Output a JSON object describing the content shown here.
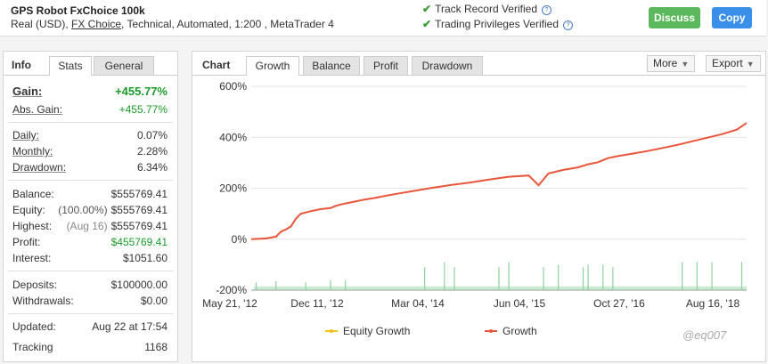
{
  "header": {
    "system_name": "GPS Robot FxChoice 100k",
    "sub_prefix": "Real (USD), ",
    "broker": "FX Choice",
    "sub_suffix": ", Technical, Automated, 1:200 , MetaTrader 4",
    "track_record": "Track Record Verified",
    "trading_privileges": "Trading Privileges Verified",
    "discuss_label": "Discuss",
    "copy_label": "Copy"
  },
  "info": {
    "title": "Info",
    "tabs": [
      "Stats",
      "General"
    ],
    "gain_label": "Gain:",
    "gain_value": "+455.77%",
    "abs_gain_label": "Abs. Gain:",
    "abs_gain_value": "+455.77%",
    "daily_label": "Daily:",
    "daily_value": "0.07%",
    "monthly_label": "Monthly:",
    "monthly_value": "2.28%",
    "drawdown_label": "Drawdown:",
    "drawdown_value": "6.34%",
    "balance_label": "Balance:",
    "balance_value": "$555769.41",
    "equity_label": "Equity:",
    "equity_pct": "(100.00%)",
    "equity_value": "$555769.41",
    "highest_label": "Highest:",
    "highest_date": "(Aug 16)",
    "highest_value": "$555769.41",
    "profit_label": "Profit:",
    "profit_value": "$455769.41",
    "interest_label": "Interest:",
    "interest_value": "$1051.60",
    "deposits_label": "Deposits:",
    "deposits_value": "$100000.00",
    "withdrawals_label": "Withdrawals:",
    "withdrawals_value": "$0.00",
    "updated_label": "Updated:",
    "updated_value": "Aug 22 at 17:54",
    "tracking_label": "Tracking",
    "tracking_value": "1168"
  },
  "chart_panel": {
    "title": "Chart",
    "tabs": [
      "Growth",
      "Balance",
      "Profit",
      "Drawdown"
    ],
    "more_label": "More",
    "export_label": "Export"
  },
  "watermark": "@eq007",
  "colors": {
    "growth": "#e8553a",
    "equity": "#f0c419",
    "bars": "#8fd19e",
    "discuss": "#5cb85c",
    "copy": "#3a8fe8"
  },
  "chart_data": {
    "type": "line",
    "title": "",
    "xlabel": "",
    "ylabel": "",
    "x_ticks": [
      "May 21, '12",
      "Dec 11, '12",
      "Mar 04, '14",
      "Jun 04, '15",
      "Oct 27, '16",
      "Aug 16, '18"
    ],
    "y_ticks": [
      "600%",
      "400%",
      "200%",
      "0%",
      "-200%"
    ],
    "ylim": [
      -200,
      600
    ],
    "legend": [
      "Equity Growth",
      "Growth"
    ],
    "legend_position": "bottom",
    "grid": "horizontal",
    "series": [
      {
        "name": "Growth",
        "x": [
          0,
          3,
          5,
          6,
          7,
          8,
          9,
          10,
          12,
          14,
          16,
          17,
          18,
          19,
          20,
          21,
          22,
          23,
          25,
          27,
          30,
          33,
          36,
          40,
          44,
          48,
          52,
          56,
          58,
          60,
          63,
          66,
          68,
          70,
          72,
          74,
          77,
          80,
          83,
          86,
          89,
          92,
          95,
          98,
          100
        ],
        "y": [
          0,
          3,
          10,
          30,
          38,
          50,
          80,
          100,
          110,
          118,
          122,
          130,
          136,
          140,
          144,
          148,
          152,
          156,
          162,
          170,
          180,
          190,
          200,
          212,
          222,
          234,
          245,
          250,
          212,
          258,
          272,
          282,
          294,
          302,
          318,
          326,
          336,
          346,
          358,
          370,
          384,
          398,
          412,
          430,
          456
        ]
      }
    ],
    "bars": {
      "name": "Deposits",
      "x": [
        1,
        5,
        11,
        16,
        19,
        35,
        39,
        41,
        50,
        52,
        59,
        62,
        67,
        68,
        71,
        73,
        87,
        90,
        93,
        99
      ],
      "y": [
        -170,
        -165,
        -170,
        -160,
        -160,
        -110,
        -90,
        -110,
        -110,
        -90,
        -110,
        -100,
        -110,
        -100,
        -100,
        -110,
        -90,
        -90,
        -90,
        -90
      ]
    }
  }
}
